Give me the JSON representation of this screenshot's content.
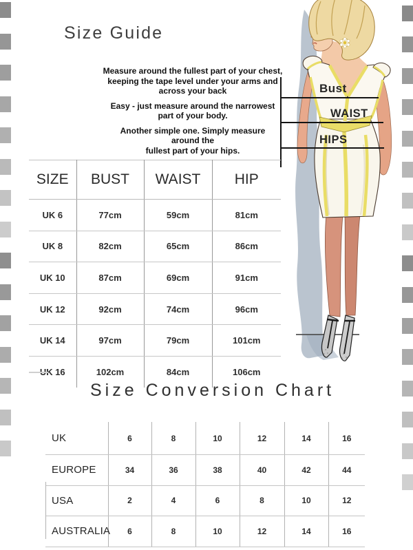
{
  "page": {
    "title": "Size Guide",
    "conversion_title": "Size Conversion Chart"
  },
  "instructions": {
    "chest": [
      "Measure around the fullest part of your chest,",
      "keeping the tape level under your arms and",
      "across your back"
    ],
    "waist": [
      "Easy - just measure around the narrowest",
      "part of your body."
    ],
    "hips": [
      "Another simple one. Simply measure",
      "around the",
      "fullest part of your hips."
    ]
  },
  "figure": {
    "bust_label": "Bust",
    "waist_label": "WAIST",
    "hips_label": "HIPS"
  },
  "size_table": {
    "headers": [
      "SIZE",
      "BUST",
      "WAIST",
      "HIP"
    ],
    "rows": [
      [
        "UK 6",
        "77cm",
        "59cm",
        "81cm"
      ],
      [
        "UK 8",
        "82cm",
        "65cm",
        "86cm"
      ],
      [
        "UK 10",
        "87cm",
        "69cm",
        "91cm"
      ],
      [
        "UK 12",
        "92cm",
        "74cm",
        "96cm"
      ],
      [
        "UK 14",
        "97cm",
        "79cm",
        "101cm"
      ],
      [
        "UK 16",
        "102cm",
        "84cm",
        "106cm"
      ]
    ]
  },
  "conversion_table": {
    "rows": [
      {
        "label": "UK",
        "values": [
          "6",
          "8",
          "10",
          "12",
          "14",
          "16"
        ]
      },
      {
        "label": "EUROPE",
        "values": [
          "34",
          "36",
          "38",
          "40",
          "42",
          "44"
        ]
      },
      {
        "label": "USA",
        "values": [
          "2",
          "4",
          "6",
          "8",
          "10",
          "12"
        ]
      },
      {
        "label": "AUSTRALIA",
        "values": [
          "6",
          "8",
          "10",
          "12",
          "14",
          "16"
        ]
      }
    ]
  },
  "decor": {
    "left_squares": [
      "#8c8c8c",
      "#969696",
      "#9e9e9e",
      "#a7a7a7",
      "#b0b0b0",
      "#bababa",
      "#c3c3c3",
      "#cccccc",
      "#8f8f8f",
      "#999999",
      "#a2a2a2",
      "#acacac",
      "#b6b6b6",
      "#c0c0c0",
      "#c9c9c9"
    ],
    "right_squares": [
      "#8a8a8a",
      "#939393",
      "#9c9c9c",
      "#a5a5a5",
      "#aeaeae",
      "#b7b7b7",
      "#c0c0c0",
      "#c9c9c9",
      "#8d8d8d",
      "#979797",
      "#a1a1a1",
      "#ababab",
      "#b5b5b5",
      "#bfbfbf",
      "#c8c8c8",
      "#d0d0d0"
    ],
    "accent_yellow": "#eadd68",
    "shadow_blue": "#a7b3c2",
    "line_black": "#141414"
  }
}
